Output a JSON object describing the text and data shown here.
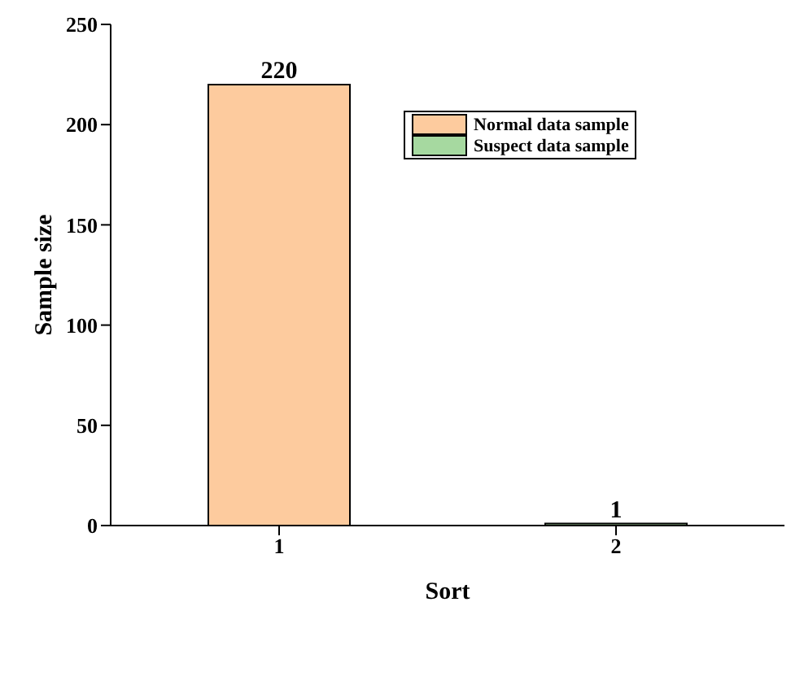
{
  "chart_data": {
    "type": "bar",
    "xlabel": "Sort",
    "ylabel": "Sample size",
    "categories": [
      "1",
      "2"
    ],
    "series": [
      {
        "name": "Normal data sample",
        "color": "#fdcb9e",
        "values": [
          220,
          null
        ]
      },
      {
        "name": "Suspect data sample",
        "color": "#a6d9a0",
        "values": [
          null,
          1
        ]
      }
    ],
    "ylim": [
      0,
      250
    ],
    "yticks": [
      0,
      50,
      100,
      150,
      200,
      250
    ],
    "data_labels": true,
    "legend": "top right",
    "grid": false
  }
}
